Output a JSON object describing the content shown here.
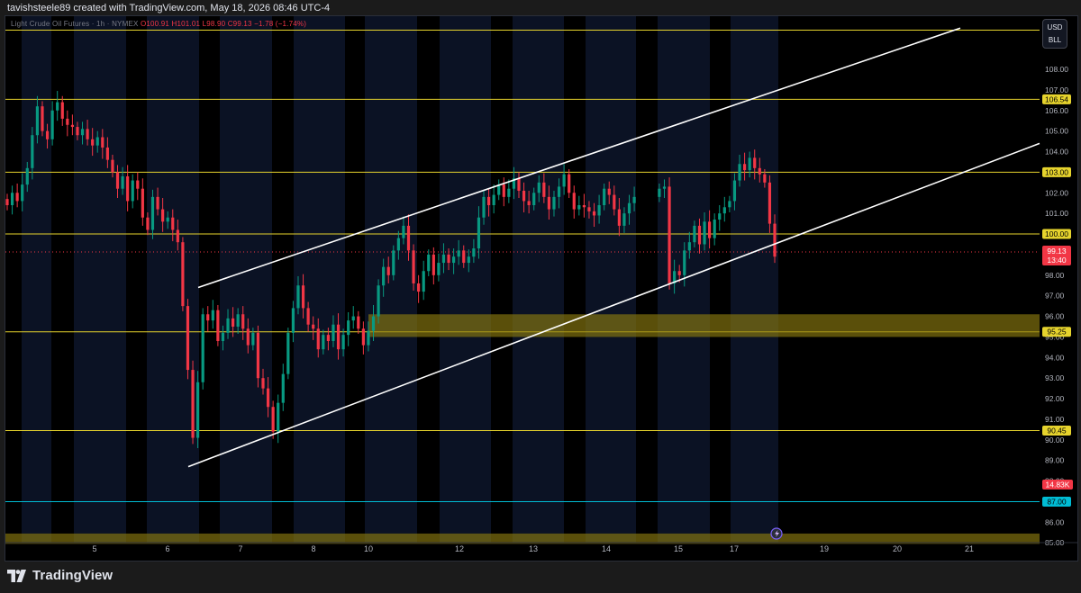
{
  "header": {
    "created_by": "tavishsteele89 created with TradingView.com, May 18, 2026 08:46 UTC-4"
  },
  "symbol": {
    "name": "Light Crude Oil Futures",
    "interval": "1h",
    "exchange": "NYMEX",
    "o": "O100.91",
    "h": "H101.01",
    "l": "L98.90",
    "c": "C99.13",
    "change": "−1.78 (−1.74%)"
  },
  "currency_box": {
    "currency": "USD",
    "unit": "BLL"
  },
  "footer": {
    "brand": "TradingView"
  },
  "colors": {
    "background": "#000000",
    "session_shade": "#0b1224",
    "level_line": "#e6d32d",
    "zone_fill": "#8a7a10",
    "up_candle": "#089981",
    "down_candle": "#f23645",
    "channel": "#ffffff",
    "cyan_line": "#00bcd4"
  },
  "chart_data": {
    "type": "candlestick",
    "title": "Light Crude Oil Futures · 1h · NYMEX",
    "y_axis": {
      "ticks": [
        "108.00",
        "107.00",
        "106.00",
        "105.00",
        "104.00",
        "103.00",
        "102.00",
        "101.00",
        "100.00",
        "99.00",
        "98.00",
        "97.00",
        "96.00",
        "95.00",
        "94.00",
        "93.00",
        "92.00",
        "91.00",
        "90.00",
        "89.00",
        "88.00",
        "87.00",
        "86.00",
        "85.00"
      ],
      "ylim": [
        84.9,
        110.2
      ]
    },
    "x_axis": {
      "ticks": [
        "5",
        "6",
        "7",
        "8",
        "10",
        "12",
        "13",
        "14",
        "15",
        "17",
        "19",
        "20",
        "21"
      ]
    },
    "horizontal_levels": [
      {
        "label": "106.54",
        "value": 106.54,
        "kind": "level"
      },
      {
        "label": "103.00",
        "value": 103.0,
        "kind": "level"
      },
      {
        "label": "100.00",
        "value": 100.0,
        "kind": "level"
      },
      {
        "label": "95.25",
        "value": 95.25,
        "kind": "level"
      },
      {
        "label": "90.45",
        "value": 90.45,
        "kind": "level"
      },
      {
        "label": "87.00",
        "value": 87.0,
        "kind": "cyan"
      }
    ],
    "top_level": {
      "value": 109.9
    },
    "zones": [
      {
        "from_date": "10",
        "to": "right-edge",
        "low": 95.0,
        "high": 96.1
      },
      {
        "from_date": "start",
        "to": "right-edge",
        "low": 84.95,
        "high": 85.45
      }
    ],
    "channel": {
      "upper": [
        {
          "date": "6",
          "price": 97.4
        },
        {
          "date": "20",
          "price": 110.0
        }
      ],
      "lower": [
        {
          "date": "6",
          "price": 88.7
        },
        {
          "date": "right-edge",
          "price": 104.4
        }
      ]
    },
    "price_label": {
      "price": "99.13",
      "countdown": "13:40",
      "value": 99.13
    },
    "volume_label": "14.83K",
    "prices": [
      101.4,
      102.0,
      101.6,
      102.4,
      103.2,
      104.8,
      106.2,
      105.0,
      104.6,
      106.0,
      106.4,
      105.6,
      105.3,
      105.2,
      104.8,
      105.1,
      104.6,
      104.3,
      104.7,
      104.2,
      103.6,
      103.0,
      102.2,
      102.8,
      101.6,
      102.6,
      102.2,
      100.8,
      100.2,
      101.8,
      101.2,
      100.6,
      100.8,
      100.2,
      99.6,
      96.5,
      93.4,
      90.1,
      92.8,
      96.1,
      95.8,
      96.3,
      94.8,
      95.2,
      95.9,
      95.5,
      96.1,
      95.4,
      94.6,
      95.2,
      93.0,
      92.5,
      91.6,
      90.4,
      91.8,
      93.2,
      95.2,
      96.4,
      97.5,
      96.4,
      95.6,
      95.4,
      94.4,
      95.1,
      94.8,
      95.6,
      94.4,
      95.1,
      95.8,
      96.0,
      95.4,
      94.6,
      95.3,
      96.0,
      97.5,
      98.4,
      98.0,
      99.2,
      99.8,
      100.4,
      99.2,
      97.6,
      97.2,
      98.2,
      99.0,
      98.0,
      98.6,
      99.0,
      98.6,
      98.9,
      99.2,
      98.6,
      98.9,
      99.3,
      100.8,
      101.8,
      101.4,
      101.9,
      102.4,
      101.8,
      102.2,
      102.7,
      102.1,
      101.6,
      101.4,
      102.0,
      102.5,
      101.8,
      101.2,
      101.8,
      102.3,
      102.9,
      102.0,
      101.2,
      101.4,
      101.3,
      101.1,
      100.9,
      101.4,
      102.2,
      101.9,
      101.2,
      100.4,
      101.0,
      101.5,
      101.8,
      102.2,
      102.3,
      97.6,
      98.2,
      98.0,
      99.2,
      99.6,
      100.4,
      99.5,
      100.6,
      99.8,
      100.7,
      101.0,
      101.3,
      101.6,
      102.6,
      103.4,
      103.1,
      103.7,
      103.2,
      102.9,
      102.5,
      100.5,
      98.9
    ],
    "gaps": [
      126
    ]
  }
}
